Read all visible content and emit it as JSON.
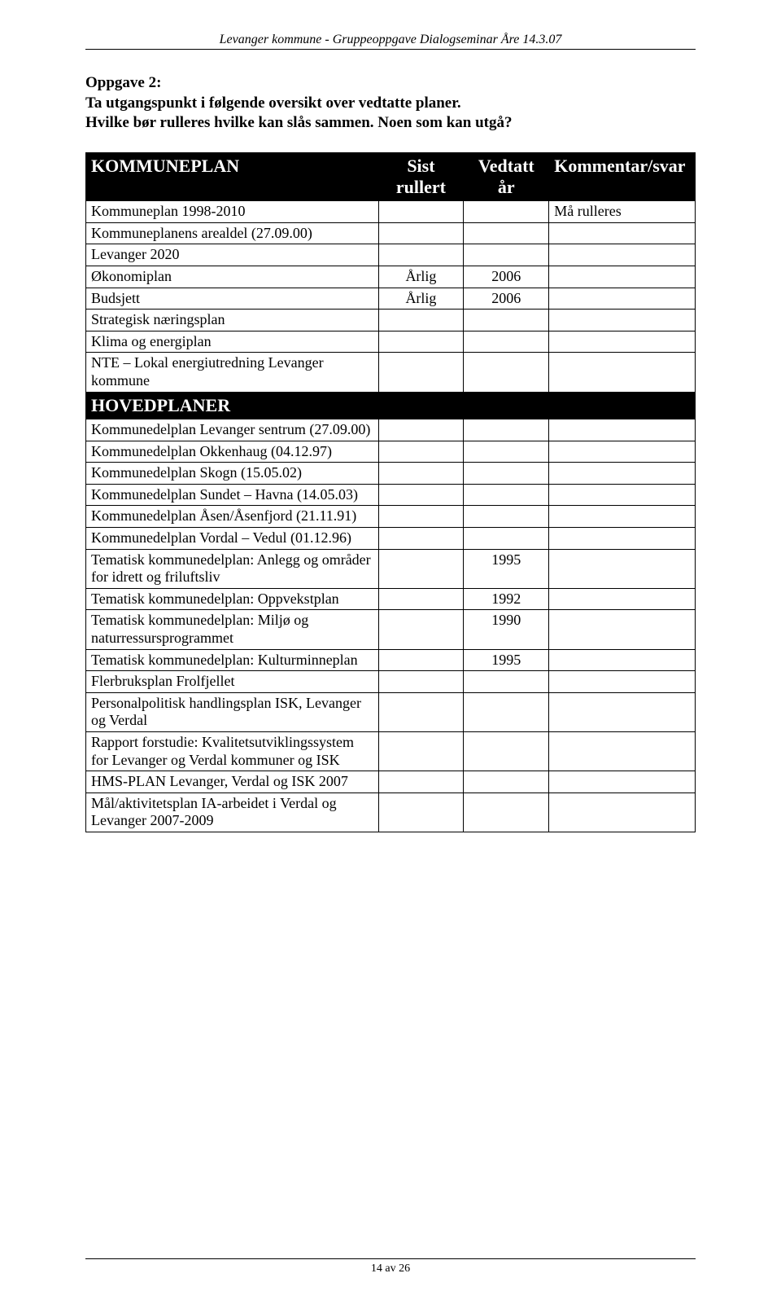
{
  "header": "Levanger kommune - Gruppeoppgave Dialogseminar Åre 14.3.07",
  "oppgave_title": "Oppgave 2:",
  "intro_line1": "Ta utgangspunkt i følgende oversikt over vedtatte planer.",
  "intro_line2": "Hvilke bør rulleres hvilke kan slås sammen. Noen som kan utgå?",
  "col_headers": {
    "sist_rullert": "Sist\nrullert",
    "vedtatt_ar": "Vedtatt\når",
    "kommentar": "Kommentar/svar"
  },
  "sections": [
    {
      "title": "KOMMUNEPLAN",
      "rows": [
        {
          "label": "Kommuneplan 1998-2010",
          "sist": "",
          "vedtatt": "",
          "kommentar": "Må rulleres"
        },
        {
          "label": "Kommuneplanens arealdel (27.09.00)",
          "sist": "",
          "vedtatt": "",
          "kommentar": ""
        },
        {
          "label": "Levanger 2020",
          "sist": "",
          "vedtatt": "",
          "kommentar": ""
        },
        {
          "label": "Økonomiplan",
          "sist": "Årlig",
          "vedtatt": "2006",
          "kommentar": ""
        },
        {
          "label": "Budsjett",
          "sist": "Årlig",
          "vedtatt": "2006",
          "kommentar": ""
        },
        {
          "label": "Strategisk næringsplan",
          "sist": "",
          "vedtatt": "",
          "kommentar": ""
        },
        {
          "label": "Klima og energiplan",
          "sist": "",
          "vedtatt": "",
          "kommentar": ""
        },
        {
          "label": "NTE – Lokal energiutredning Levanger kommune",
          "sist": "",
          "vedtatt": "",
          "kommentar": ""
        }
      ]
    },
    {
      "title": "HOVEDPLANER",
      "rows": [
        {
          "label": "Kommunedelplan Levanger sentrum (27.09.00)",
          "sist": "",
          "vedtatt": "",
          "kommentar": ""
        },
        {
          "label": "Kommunedelplan Okkenhaug (04.12.97)",
          "sist": "",
          "vedtatt": "",
          "kommentar": ""
        },
        {
          "label": "Kommunedelplan Skogn (15.05.02)",
          "sist": "",
          "vedtatt": "",
          "kommentar": ""
        },
        {
          "label": "Kommunedelplan Sundet – Havna (14.05.03)",
          "sist": "",
          "vedtatt": "",
          "kommentar": ""
        },
        {
          "label": "Kommunedelplan Åsen/Åsenfjord (21.11.91)",
          "sist": "",
          "vedtatt": "",
          "kommentar": ""
        },
        {
          "label": "Kommunedelplan Vordal – Vedul (01.12.96)",
          "sist": "",
          "vedtatt": "",
          "kommentar": ""
        },
        {
          "label": "Tematisk kommunedelplan: Anlegg og områder for idrett og friluftsliv",
          "sist": "",
          "vedtatt": "1995",
          "kommentar": ""
        },
        {
          "label": "Tematisk kommunedelplan: Oppvekstplan",
          "sist": "",
          "vedtatt": "1992",
          "kommentar": ""
        },
        {
          "label": "Tematisk kommunedelplan: Miljø og naturressursprogrammet",
          "sist": "",
          "vedtatt": "1990",
          "kommentar": ""
        },
        {
          "label": "Tematisk kommunedelplan: Kulturminneplan",
          "sist": "",
          "vedtatt": "1995",
          "kommentar": ""
        },
        {
          "label": "Flerbruksplan Frolfjellet",
          "sist": "",
          "vedtatt": "",
          "kommentar": ""
        },
        {
          "label": "Personalpolitisk handlingsplan ISK, Levanger og Verdal",
          "sist": "",
          "vedtatt": "",
          "kommentar": ""
        },
        {
          "label": "Rapport forstudie: Kvalitetsutviklingssystem for Levanger og Verdal kommuner og ISK",
          "sist": "",
          "vedtatt": "",
          "kommentar": ""
        },
        {
          "label": "HMS-PLAN Levanger, Verdal og ISK 2007",
          "sist": "",
          "vedtatt": "",
          "kommentar": ""
        },
        {
          "label": "Mål/aktivitetsplan IA-arbeidet i Verdal og Levanger 2007-2009",
          "sist": "",
          "vedtatt": "",
          "kommentar": ""
        }
      ]
    }
  ],
  "footer": "14 av 26"
}
